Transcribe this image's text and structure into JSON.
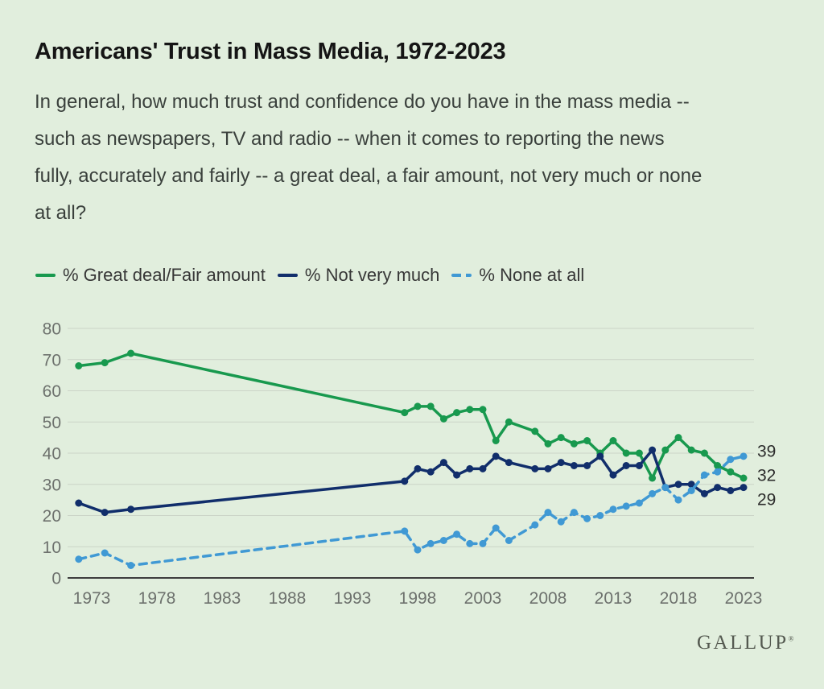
{
  "colors": {
    "background": "#e1eedd",
    "grid_line": "#cbd4c7",
    "axis_line": "#3d3d3d",
    "tick_label": "#6d716d",
    "end_label": "#2c2c2c",
    "title_text": "#151515",
    "body_text": "#3a403c",
    "legend_text": "#373737",
    "brand_text": "#545950",
    "series_green": "#18994e",
    "series_navy": "#112e6b",
    "series_blue": "#4099d4"
  },
  "header": {
    "title": "Americans' Trust in Mass Media, 1972-2023",
    "question_lines": [
      "In general, how much trust and confidence do you have in the mass media --",
      "such as newspapers, TV and radio -- when it comes to reporting the news",
      "fully, accurately and fairly -- a great deal, a fair amount, not very much or none",
      "at all?"
    ]
  },
  "footer": {
    "brand": "GALLUP",
    "registered_mark": "®"
  },
  "chart_data": {
    "type": "line",
    "title": "Americans' Trust in Mass Media, 1972-2023",
    "x": [
      1972,
      1974,
      1976,
      1997,
      1998,
      1999,
      2000,
      2001,
      2002,
      2003,
      2004,
      2005,
      2007,
      2008,
      2009,
      2010,
      2011,
      2012,
      2013,
      2014,
      2015,
      2016,
      2017,
      2018,
      2019,
      2020,
      2021,
      2022,
      2023
    ],
    "series": [
      {
        "id": "great-deal-fair-amount",
        "name": "% Great deal/Fair amount",
        "color": "#18994e",
        "style": "solid",
        "values": [
          68,
          69,
          72,
          53,
          55,
          55,
          51,
          53,
          54,
          54,
          44,
          50,
          47,
          43,
          45,
          43,
          44,
          40,
          44,
          40,
          40,
          32,
          41,
          45,
          41,
          40,
          36,
          34,
          32
        ]
      },
      {
        "id": "not-very-much",
        "name": "% Not very much",
        "color": "#112e6b",
        "style": "solid",
        "values": [
          24,
          21,
          22,
          31,
          35,
          34,
          37,
          33,
          35,
          35,
          39,
          37,
          35,
          35,
          37,
          36,
          36,
          39,
          33,
          36,
          36,
          41,
          29,
          30,
          30,
          27,
          29,
          28,
          29
        ]
      },
      {
        "id": "none-at-all",
        "name": "% None at all",
        "color": "#4099d4",
        "style": "dashed",
        "values": [
          6,
          8,
          4,
          15,
          9,
          11,
          12,
          14,
          11,
          11,
          16,
          12,
          17,
          21,
          18,
          21,
          19,
          20,
          22,
          23,
          24,
          27,
          29,
          25,
          28,
          33,
          34,
          38,
          39
        ]
      }
    ],
    "ylim": [
      0,
      80
    ],
    "yticks": [
      0,
      10,
      20,
      30,
      40,
      50,
      60,
      70,
      80
    ],
    "xticks": [
      1973,
      1978,
      1983,
      1988,
      1993,
      1998,
      2003,
      2008,
      2013,
      2018,
      2023
    ],
    "end_labels": [
      "39",
      "32",
      "29"
    ],
    "grid": "horizontal",
    "legend_position": "top"
  }
}
